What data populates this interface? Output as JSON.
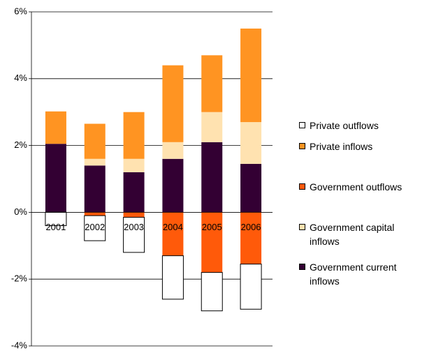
{
  "chart_data": {
    "type": "stacked_bar",
    "categories": [
      "2001",
      "2002",
      "2003",
      "2004",
      "2005",
      "2006"
    ],
    "series": [
      {
        "name": "Private outflows",
        "color": "#ffffff",
        "values": [
          -0.4,
          -0.75,
          -1.05,
          -1.3,
          -1.15,
          -1.35
        ]
      },
      {
        "name": "Private inflows",
        "color": "#ff9422",
        "values": [
          0.97,
          1.05,
          1.4,
          2.3,
          1.7,
          2.8
        ]
      },
      {
        "name": "Government outflows",
        "color": "#ff5a0a",
        "values": [
          0,
          -0.1,
          -0.15,
          -1.3,
          -1.8,
          -1.55
        ]
      },
      {
        "name": "Government capital inflows",
        "color": "#ffe2b0",
        "values": [
          0,
          0.2,
          0.4,
          0.5,
          0.9,
          1.25
        ]
      },
      {
        "name": "Government current inflows",
        "color": "#330033",
        "values": [
          2.05,
          1.4,
          1.2,
          1.6,
          2.1,
          1.45
        ]
      }
    ],
    "ylim": [
      -4,
      6
    ],
    "yticks": [
      {
        "value": -4,
        "label": "-4%"
      },
      {
        "value": -2,
        "label": "-2%"
      },
      {
        "value": 0,
        "label": "0%"
      },
      {
        "value": 2,
        "label": "2%"
      },
      {
        "value": 4,
        "label": "4%"
      },
      {
        "value": 6,
        "label": "6%"
      }
    ],
    "grid": true
  }
}
